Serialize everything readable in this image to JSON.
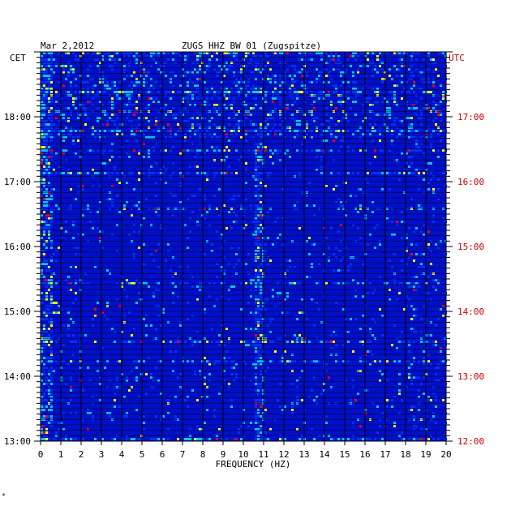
{
  "header": {
    "date": "Mar 2,2012",
    "station": "ZUGS HHZ BW 01 (Zugspitze)"
  },
  "corner_mark": "*",
  "chart_data": {
    "type": "heatmap",
    "title": "ZUGS HHZ BW 01 (Zugspitze)",
    "date": "Mar 2,2012",
    "xlabel": "FREQUENCY (HZ)",
    "xlim": [
      0,
      20
    ],
    "x_ticks": [
      "0",
      "1",
      "2",
      "3",
      "4",
      "5",
      "6",
      "7",
      "8",
      "9",
      "10",
      "11",
      "12",
      "13",
      "14",
      "15",
      "16",
      "17",
      "18",
      "19",
      "20"
    ],
    "left_axis": {
      "label": "CET",
      "ticks": [
        "18:00",
        "17:00",
        "16:00",
        "15:00",
        "14:00",
        "13:00"
      ],
      "tick_hours": [
        18,
        17,
        16,
        15,
        14,
        13
      ],
      "range_hours": [
        13.0,
        19.0
      ]
    },
    "right_axis": {
      "label": "UTC",
      "ticks": [
        "17:00",
        "16:00",
        "15:00",
        "14:00",
        "13:00",
        "12:00"
      ]
    },
    "colors": {
      "background": "#0010c8",
      "low": "#0030ff",
      "mid": "#00c8ff",
      "high": "#ffff00",
      "peak": "#ff0000",
      "utc_text": "#cc0000"
    },
    "features": [
      {
        "name": "persistent line",
        "freq_hz": 10.7,
        "hours": [
          13.0,
          17.6
        ]
      },
      {
        "name": "broadband noise",
        "hours": [
          17.7,
          19.0
        ]
      },
      {
        "name": "low frequency band",
        "freq_hz": 0.2,
        "hours": [
          13.0,
          19.0
        ]
      }
    ]
  }
}
